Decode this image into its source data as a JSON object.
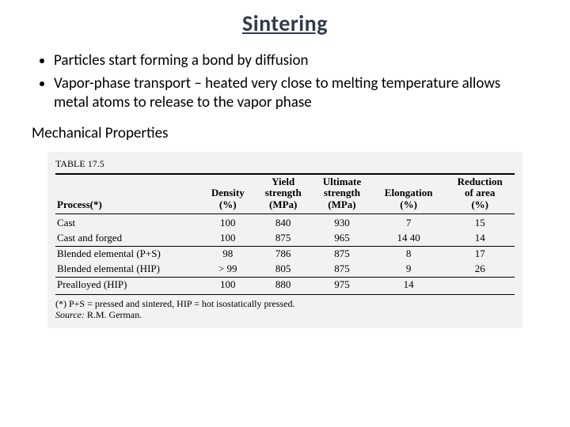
{
  "title_color": "#31394d",
  "text_color": "#000000",
  "background_color": "#ffffff",
  "table_bg": "#f2f2f2",
  "slide": {
    "title": "Sintering",
    "bullets": [
      "Particles start forming a bond by diffusion",
      "Vapor-phase transport – heated very close to melting temperature allows metal atoms to release to the vapor phase"
    ],
    "subhead": "Mechanical Properties"
  },
  "table": {
    "label": "TABLE 17.5",
    "columns": [
      {
        "top": "",
        "bottom": "Process(*)",
        "align": "left"
      },
      {
        "top": "Density",
        "bottom": "(%)"
      },
      {
        "top": "Yield",
        "mid": "strength",
        "bottom": "(MPa)"
      },
      {
        "top": "Ultimate",
        "mid": "strength",
        "bottom": "(MPa)"
      },
      {
        "top": "Elongation",
        "bottom": "(%)"
      },
      {
        "top": "Reduction",
        "mid": "of area",
        "bottom": "(%)"
      }
    ],
    "rows": [
      {
        "process": "Cast",
        "density": "100",
        "yield": "840",
        "ult": "930",
        "elong": "7",
        "red": "15"
      },
      {
        "process": "Cast and forged",
        "density": "100",
        "yield": "875",
        "ult": "965",
        "elong": "14 40",
        "red": "14"
      },
      {
        "process": "Blended elemental (P+S)",
        "density": "98",
        "yield": "786",
        "ult": "875",
        "elong": "8",
        "red": "17"
      },
      {
        "process": "Blended elemental (HIP)",
        "density": "> 99",
        "yield": "805",
        "ult": "875",
        "elong": "9",
        "red": "26"
      },
      {
        "process": "Prealloyed (HIP)",
        "density": "100",
        "yield": "880",
        "ult": "975",
        "elong": "14",
        "red": ""
      }
    ],
    "footnote1": "(*) P+S = pressed and sintered, HIP = hot isostatically pressed.",
    "footnote2_label": "Source:",
    "footnote2_value": "R.M. German."
  }
}
